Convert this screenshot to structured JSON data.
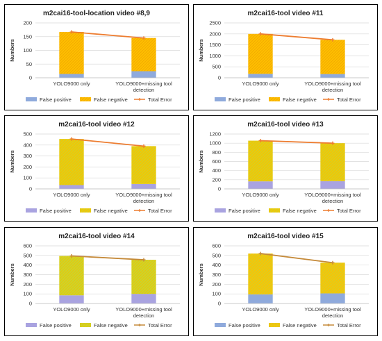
{
  "chart_data": [
    {
      "type": "bar",
      "title": "m2cai16-tool-location video #8,9",
      "ylabel": "Numbers",
      "xlabel": "",
      "categories": [
        [
          "YOLO9000 only"
        ],
        [
          "YOLO9000+missing tool",
          "detection"
        ]
      ],
      "ylim": [
        0,
        200
      ],
      "yticks": [
        0,
        50,
        100,
        150,
        200
      ],
      "series": [
        {
          "name": "False positive",
          "kind": "bar",
          "values": [
            14,
            24
          ],
          "color": "#8faadc"
        },
        {
          "name": "False negative",
          "kind": "bar",
          "values": [
            153,
            121
          ],
          "color": "#ffc000",
          "pattern": "#f2a900"
        },
        {
          "name": "Total Error",
          "kind": "line",
          "values": [
            167,
            145
          ],
          "color": "#ed7d31"
        }
      ],
      "legend": "bottom",
      "grid": true
    },
    {
      "type": "bar",
      "title": "m2cai16-tool video #11",
      "ylabel": "Numbers",
      "xlabel": "",
      "categories": [
        [
          "YOLO9000 only"
        ],
        [
          "YOLO9000+missing tool",
          "detection"
        ]
      ],
      "ylim": [
        0,
        2500
      ],
      "yticks": [
        0,
        500,
        1000,
        1500,
        2000,
        2500
      ],
      "series": [
        {
          "name": "False positive",
          "kind": "bar",
          "values": [
            180,
            170
          ],
          "color": "#8faadc"
        },
        {
          "name": "False negative",
          "kind": "bar",
          "values": [
            1820,
            1560
          ],
          "color": "#ffc000",
          "pattern": "#f2a900"
        },
        {
          "name": "Total Error",
          "kind": "line",
          "values": [
            2000,
            1730
          ],
          "color": "#ed7d31"
        }
      ],
      "legend": "bottom",
      "grid": true
    },
    {
      "type": "bar",
      "title": "m2cai16-tool video #12",
      "ylabel": "Numbers",
      "xlabel": "",
      "categories": [
        [
          "YOLO9000 only"
        ],
        [
          "YOLO9000+missing tool",
          "detection"
        ]
      ],
      "ylim": [
        0,
        500
      ],
      "yticks": [
        0,
        100,
        200,
        300,
        400,
        500
      ],
      "series": [
        {
          "name": "False positive",
          "kind": "bar",
          "values": [
            35,
            45
          ],
          "color": "#a9a3e0"
        },
        {
          "name": "False negative",
          "kind": "bar",
          "values": [
            420,
            345
          ],
          "color": "#f6c400",
          "pattern": "#c6d631"
        },
        {
          "name": "Total Error",
          "kind": "line",
          "values": [
            455,
            390
          ],
          "color": "#ed7d31"
        }
      ],
      "legend": "bottom",
      "grid": true
    },
    {
      "type": "bar",
      "title": "m2cai16-tool video #13",
      "ylabel": "Numbers",
      "xlabel": "",
      "categories": [
        [
          "YOLO9000 only"
        ],
        [
          "YOLO9000+missing tool",
          "detection"
        ]
      ],
      "ylim": [
        0,
        1200
      ],
      "yticks": [
        0,
        200,
        400,
        600,
        800,
        1000,
        1200
      ],
      "series": [
        {
          "name": "False positive",
          "kind": "bar",
          "values": [
            165,
            170
          ],
          "color": "#a9a3e0"
        },
        {
          "name": "False negative",
          "kind": "bar",
          "values": [
            890,
            830
          ],
          "color": "#f6c400",
          "pattern": "#c6d631"
        },
        {
          "name": "Total Error",
          "kind": "line",
          "values": [
            1055,
            1000
          ],
          "color": "#ed7d31"
        }
      ],
      "legend": "bottom",
      "grid": true
    },
    {
      "type": "bar",
      "title": "m2cai16-tool video #14",
      "ylabel": "Numbers",
      "xlabel": "",
      "categories": [
        [
          "YOLO9000 only"
        ],
        [
          "YOLO9000+missing tool",
          "detection"
        ]
      ],
      "ylim": [
        0,
        600
      ],
      "yticks": [
        0,
        100,
        200,
        300,
        400,
        500,
        600
      ],
      "series": [
        {
          "name": "False positive",
          "kind": "bar",
          "values": [
            85,
            100
          ],
          "color": "#a9a3e0"
        },
        {
          "name": "False negative",
          "kind": "bar",
          "values": [
            410,
            355
          ],
          "color": "#c6d631",
          "pattern": "#f2c200"
        },
        {
          "name": "Total Error",
          "kind": "line",
          "values": [
            495,
            455
          ],
          "color": "#c58a3a"
        }
      ],
      "legend": "bottom",
      "grid": true
    },
    {
      "type": "bar",
      "title": "m2cai16-tool video #15",
      "ylabel": "Numbers",
      "xlabel": "",
      "categories": [
        [
          "YOLO9000 only"
        ],
        [
          "YOLO9000+missing tool",
          "detection"
        ]
      ],
      "ylim": [
        0,
        600
      ],
      "yticks": [
        0,
        100,
        200,
        300,
        400,
        500,
        600
      ],
      "series": [
        {
          "name": "False positive",
          "kind": "bar",
          "values": [
            95,
            105
          ],
          "color": "#8faadc"
        },
        {
          "name": "False negative",
          "kind": "bar",
          "values": [
            425,
            320
          ],
          "color": "#ffc000",
          "pattern": "#c6d631"
        },
        {
          "name": "Total Error",
          "kind": "line",
          "values": [
            520,
            425
          ],
          "color": "#c58a3a"
        }
      ],
      "legend": "bottom",
      "grid": true
    }
  ]
}
